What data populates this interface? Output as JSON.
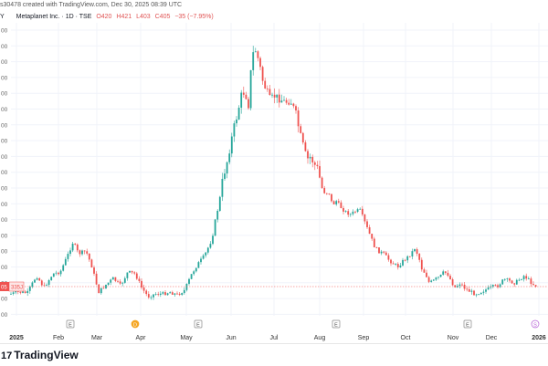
{
  "header": {
    "credit": "s30478 created with TradingView.com, Dec 30, 2025 08:39 UTC",
    "symbol_fragment": "Y",
    "title": "Metaplanet Inc. · 1D · TSE",
    "ohlc": {
      "o": "O420",
      "h": "H421",
      "l": "L403",
      "c": "C405",
      "change": "−35 (−7.95%)"
    }
  },
  "price_tag": {
    "left": "05",
    "right": "335J"
  },
  "footer": {
    "brand": "TradingView",
    "logo_glyph": "17"
  },
  "colors": {
    "up": "#26a69a",
    "down": "#ef5350",
    "grid": "#f0f3fa",
    "text": "#131722",
    "last": "#ef5350"
  },
  "chart_data": {
    "type": "candlestick",
    "x_ticks": [
      "2025",
      "Feb",
      "Mar",
      "Apr",
      "May",
      "Jun",
      "Jul",
      "Aug",
      "Sep",
      "Oct",
      "Nov",
      "Dec",
      "2026"
    ],
    "x_tick_bold": [
      "2025",
      "2026"
    ],
    "y_ticks": [
      "00",
      "00",
      "00",
      "00",
      "00",
      "00",
      "00",
      "00",
      "00",
      "00",
      "00",
      "00",
      "00",
      "00",
      "00",
      "00",
      "00",
      "00",
      "00"
    ],
    "event_markers": [
      {
        "letter": "E",
        "kind": "earnings",
        "x_index": 77
      },
      {
        "letter": "D",
        "kind": "dividend",
        "x_index": 148
      },
      {
        "letter": "E",
        "kind": "earnings",
        "x_index": 217
      },
      {
        "letter": "E",
        "kind": "earnings",
        "x_index": 368
      },
      {
        "letter": "E",
        "kind": "earnings",
        "x_index": 512
      },
      {
        "letter": "S",
        "kind": "split",
        "x_index": 586
      }
    ],
    "series_points": [
      [
        12,
        322
      ],
      [
        20,
        320
      ],
      [
        30,
        321
      ],
      [
        40,
        302
      ],
      [
        48,
        315
      ],
      [
        58,
        300
      ],
      [
        66,
        298
      ],
      [
        74,
        280
      ],
      [
        80,
        265
      ],
      [
        86,
        278
      ],
      [
        94,
        275
      ],
      [
        100,
        290
      ],
      [
        108,
        320
      ],
      [
        116,
        312
      ],
      [
        124,
        305
      ],
      [
        132,
        313
      ],
      [
        140,
        298
      ],
      [
        148,
        300
      ],
      [
        155,
        315
      ],
      [
        162,
        325
      ],
      [
        170,
        322
      ],
      [
        178,
        322
      ],
      [
        186,
        320
      ],
      [
        194,
        323
      ],
      [
        202,
        318
      ],
      [
        210,
        300
      ],
      [
        216,
        290
      ],
      [
        224,
        280
      ],
      [
        232,
        262
      ],
      [
        236,
        240
      ],
      [
        240,
        222
      ],
      [
        244,
        195
      ],
      [
        248,
        180
      ],
      [
        252,
        160
      ],
      [
        256,
        140
      ],
      [
        260,
        125
      ],
      [
        264,
        105
      ],
      [
        268,
        100
      ],
      [
        272,
        115
      ],
      [
        276,
        60
      ],
      [
        280,
        55
      ],
      [
        284,
        70
      ],
      [
        288,
        90
      ],
      [
        292,
        100
      ],
      [
        296,
        110
      ],
      [
        300,
        105
      ],
      [
        306,
        108
      ],
      [
        312,
        112
      ],
      [
        318,
        110
      ],
      [
        324,
        125
      ],
      [
        328,
        145
      ],
      [
        332,
        160
      ],
      [
        336,
        175
      ],
      [
        340,
        172
      ],
      [
        344,
        180
      ],
      [
        348,
        185
      ],
      [
        352,
        205
      ],
      [
        356,
        212
      ],
      [
        360,
        210
      ],
      [
        364,
        225
      ],
      [
        368,
        220
      ],
      [
        374,
        228
      ],
      [
        378,
        232
      ],
      [
        384,
        235
      ],
      [
        388,
        232
      ],
      [
        394,
        230
      ],
      [
        400,
        245
      ],
      [
        406,
        260
      ],
      [
        410,
        270
      ],
      [
        414,
        275
      ],
      [
        420,
        278
      ],
      [
        426,
        285
      ],
      [
        432,
        290
      ],
      [
        436,
        292
      ],
      [
        440,
        287
      ],
      [
        446,
        282
      ],
      [
        450,
        278
      ],
      [
        454,
        272
      ],
      [
        458,
        280
      ],
      [
        462,
        295
      ],
      [
        466,
        300
      ],
      [
        470,
        310
      ],
      [
        474,
        308
      ],
      [
        478,
        305
      ],
      [
        482,
        303
      ],
      [
        486,
        298
      ],
      [
        490,
        300
      ],
      [
        494,
        308
      ],
      [
        498,
        315
      ],
      [
        504,
        310
      ],
      [
        508,
        315
      ],
      [
        512,
        318
      ],
      [
        516,
        320
      ],
      [
        520,
        322
      ],
      [
        526,
        320
      ],
      [
        530,
        318
      ],
      [
        536,
        316
      ],
      [
        540,
        314
      ],
      [
        544,
        314
      ],
      [
        548,
        310
      ],
      [
        552,
        306
      ],
      [
        558,
        308
      ],
      [
        564,
        310
      ],
      [
        570,
        305
      ],
      [
        574,
        302
      ],
      [
        578,
        306
      ],
      [
        582,
        310
      ],
      [
        586,
        313
      ]
    ],
    "last_price_y": 314
  }
}
